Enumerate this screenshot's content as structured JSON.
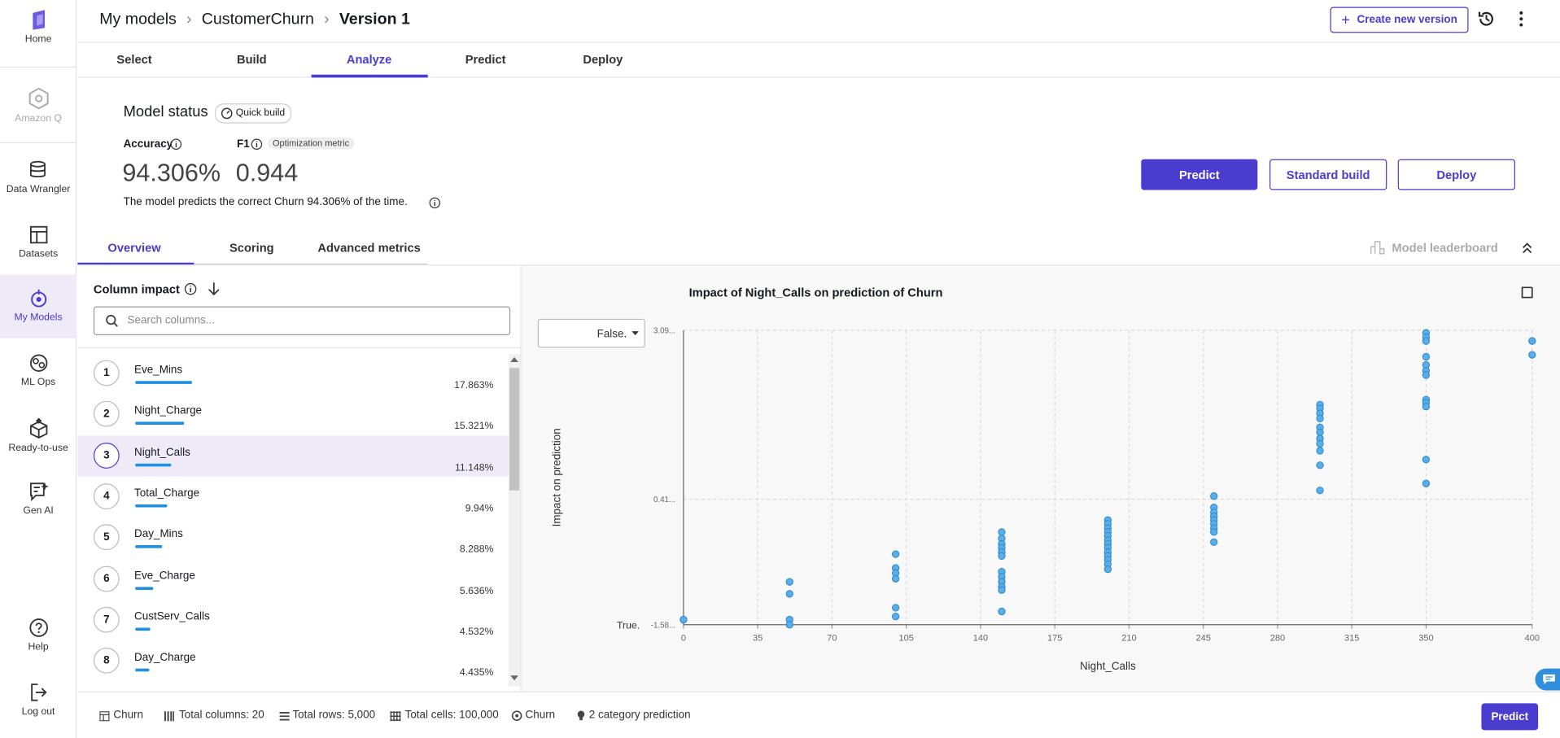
{
  "sidebar": {
    "items": [
      "Home",
      "Amazon Q",
      "Data Wrangler",
      "Datasets",
      "My Models",
      "ML Ops",
      "Ready-to-use",
      "Gen AI",
      "Help",
      "Log out"
    ]
  },
  "breadcrumb": [
    "My models",
    "CustomerChurn",
    "Version 1"
  ],
  "header_button": "Create new version",
  "tabs": [
    "Select",
    "Build",
    "Analyze",
    "Predict",
    "Deploy"
  ],
  "model_status": {
    "title": "Model status",
    "badge": "Quick build",
    "accuracy_label": "Accuracy",
    "accuracy": "94.306%",
    "f1_label": "F1",
    "f1_badge": "Optimization metric",
    "f1": "0.944",
    "description": "The model predicts the correct Churn 94.306% of the time."
  },
  "actions": [
    "Predict",
    "Standard build",
    "Deploy"
  ],
  "subtabs": [
    "Overview",
    "Scoring",
    "Advanced metrics"
  ],
  "leaderboard": "Model leaderboard",
  "column_impact": {
    "title": "Column impact",
    "search_placeholder": "Search columns...",
    "rows": [
      {
        "rank": 1,
        "name": "Eve_Mins",
        "impact": 17.863,
        "impact_label": "17.863%"
      },
      {
        "rank": 2,
        "name": "Night_Charge",
        "impact": 15.321,
        "impact_label": "15.321%"
      },
      {
        "rank": 3,
        "name": "Night_Calls",
        "impact": 11.148,
        "impact_label": "11.148%"
      },
      {
        "rank": 4,
        "name": "Total_Charge",
        "impact": 9.94,
        "impact_label": "9.94%"
      },
      {
        "rank": 5,
        "name": "Day_Mins",
        "impact": 8.288,
        "impact_label": "8.288%"
      },
      {
        "rank": 6,
        "name": "Eve_Charge",
        "impact": 5.636,
        "impact_label": "5.636%"
      },
      {
        "rank": 7,
        "name": "CustServ_Calls",
        "impact": 4.532,
        "impact_label": "4.532%"
      },
      {
        "rank": 8,
        "name": "Day_Charge",
        "impact": 4.435,
        "impact_label": "4.435%"
      }
    ]
  },
  "chart": {
    "type": "scatter",
    "title": "Impact of Night_Calls on prediction of Churn",
    "x_label": "Night_Calls",
    "y_label": "Impact on prediction",
    "selector": "False.",
    "baseline_label": "True.",
    "color": "#5aaee8",
    "x": [
      0,
      50,
      50,
      50,
      50,
      100,
      100,
      100,
      100,
      100,
      100,
      150,
      150,
      150,
      150,
      150,
      150,
      150,
      150,
      150,
      150,
      150,
      150,
      200,
      200,
      200,
      200,
      200,
      200,
      200,
      200,
      200,
      200,
      200,
      200,
      200,
      250,
      250,
      250,
      250,
      250,
      250,
      250,
      250,
      250,
      300,
      300,
      300,
      300,
      300,
      300,
      300,
      300,
      300,
      300,
      300,
      350,
      350,
      350,
      350,
      350,
      350,
      350,
      350,
      350,
      350,
      350,
      350,
      400,
      400
    ],
    "values": [
      -1.5,
      -0.9,
      -1.09,
      -1.5,
      -1.58,
      -0.46,
      -0.68,
      -0.76,
      -0.85,
      -1.31,
      -1.45,
      -0.11,
      -0.21,
      -0.3,
      -0.36,
      -0.43,
      -0.49,
      -0.74,
      -0.82,
      -0.9,
      -0.98,
      -1.03,
      -1.37,
      0.08,
      0.02,
      -0.05,
      -0.11,
      -0.17,
      -0.24,
      -0.3,
      -0.36,
      -0.43,
      -0.49,
      -0.55,
      -0.62,
      -0.7,
      0.46,
      0.28,
      0.2,
      0.14,
      0.08,
      0.02,
      -0.05,
      -0.11,
      -0.27,
      1.91,
      1.85,
      1.77,
      1.69,
      1.55,
      1.47,
      1.37,
      1.29,
      1.18,
      0.95,
      0.55,
      3.05,
      2.98,
      2.92,
      2.67,
      2.54,
      2.45,
      2.38,
      1.99,
      1.94,
      1.88,
      1.04,
      0.66,
      2.92,
      2.7
    ],
    "xlim": [
      0,
      400
    ],
    "ylim": [
      -1.58,
      3.09
    ],
    "xticks": [
      0,
      35,
      70,
      105,
      140,
      175,
      210,
      245,
      280,
      315,
      350,
      400
    ],
    "yticks": [
      {
        "value": -1.58,
        "label": "-1.58..."
      },
      {
        "value": 0.41,
        "label": "0.41..."
      },
      {
        "value": 3.09,
        "label": "3.09..."
      }
    ],
    "grid": true
  },
  "footer": {
    "items": [
      "Churn",
      "Total columns: 20",
      "Total rows: 5,000",
      "Total cells: 100,000",
      "Churn",
      "2 category prediction"
    ],
    "button": "Predict"
  }
}
